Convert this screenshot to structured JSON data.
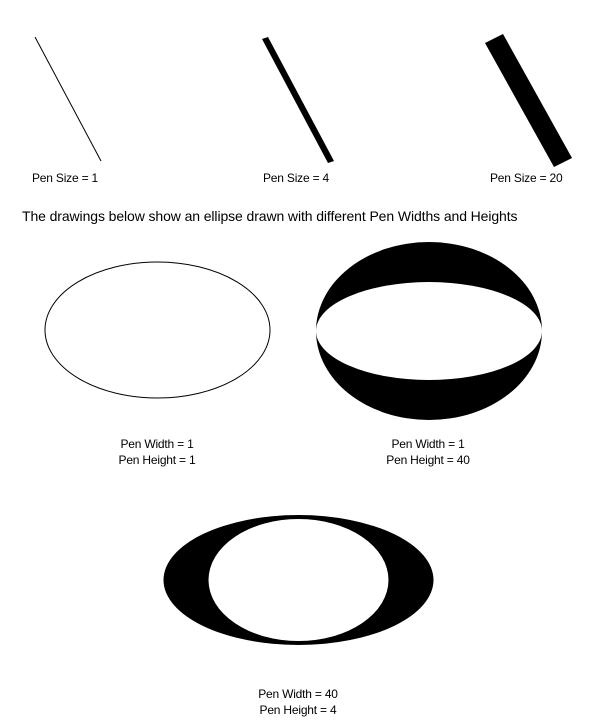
{
  "pen_size_demos": [
    {
      "label": "Pen Size = 1"
    },
    {
      "label": "Pen Size = 4"
    },
    {
      "label": "Pen Size = 20"
    }
  ],
  "caption": "The drawings below show an ellipse drawn with different Pen Widths and Heights",
  "ellipse_demos": [
    {
      "width_label": "Pen Width = 1",
      "height_label": "Pen Height = 1"
    },
    {
      "width_label": "Pen Width = 1",
      "height_label": "Pen Height = 40"
    },
    {
      "width_label": "Pen Width = 40",
      "height_label": "Pen Height = 4"
    }
  ],
  "colors": {
    "ink": "#000000",
    "paper": "#ffffff"
  }
}
